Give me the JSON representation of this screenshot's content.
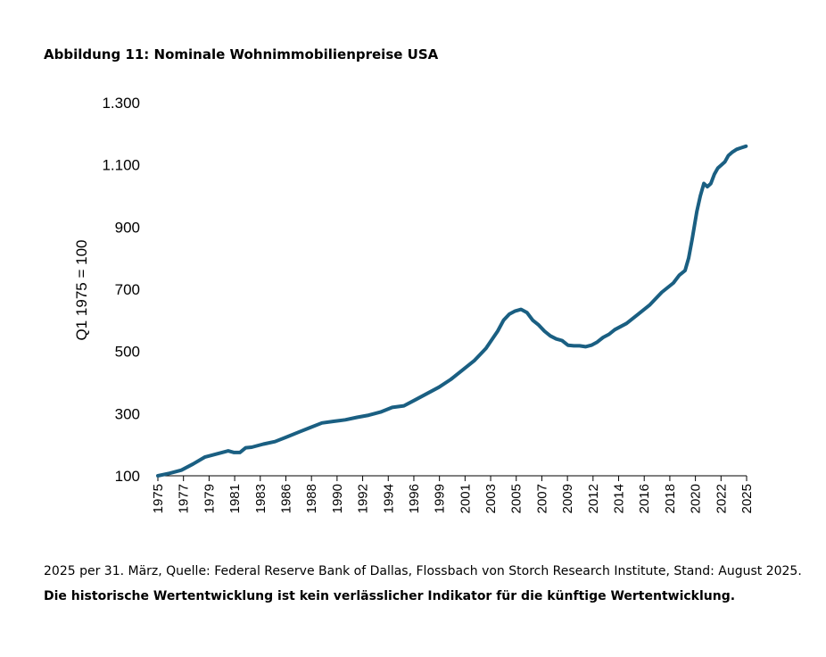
{
  "title": "Abbildung 11: Nominale Wohnimmobilienpreise USA",
  "footnote": {
    "text": "2025 per 31. März, Quelle: Federal Reserve Bank of Dallas, Flossbach von Storch Research Institute, Stand: August 2025. ",
    "bold": "Die historische Wertentwicklung ist kein verlässlicher Indikator für die künftige Wertentwicklung."
  },
  "chart_data": {
    "type": "line",
    "title": "Abbildung 11: Nominale Wohnimmobilienpreise USA",
    "ylabel": "Q1 1975 = 100",
    "xlabel": "",
    "ylim": [
      100,
      1300
    ],
    "y_ticks": [
      "100",
      "300",
      "500",
      "700",
      "900",
      "1.100",
      "1.300"
    ],
    "x_ticks": [
      "1975",
      "1977",
      "1979",
      "1981",
      "1983",
      "1986",
      "1988",
      "1990",
      "1992",
      "1994",
      "1996",
      "1999",
      "2001",
      "2003",
      "2005",
      "2007",
      "2009",
      "2012",
      "2014",
      "2016",
      "2018",
      "2020",
      "2022",
      "2025"
    ],
    "line_color": "#1a5f82",
    "grid": false,
    "series": [
      {
        "name": "",
        "x": [
          1975.0,
          1976.0,
          1977.0,
          1978.0,
          1979.0,
          1980.0,
          1981.0,
          1981.5,
          1982.0,
          1982.5,
          1983.0,
          1984.0,
          1985.0,
          1986.0,
          1987.0,
          1988.0,
          1989.0,
          1990.0,
          1991.0,
          1992.0,
          1993.0,
          1994.0,
          1995.0,
          1996.0,
          1997.0,
          1998.0,
          1999.0,
          2000.0,
          2001.0,
          2002.0,
          2003.0,
          2004.0,
          2004.5,
          2005.0,
          2005.5,
          2006.0,
          2006.5,
          2007.0,
          2007.5,
          2008.0,
          2008.5,
          2009.0,
          2009.5,
          2010.0,
          2010.5,
          2011.0,
          2011.5,
          2012.0,
          2012.5,
          2013.0,
          2013.5,
          2014.0,
          2014.5,
          2015.0,
          2016.0,
          2017.0,
          2018.0,
          2019.0,
          2019.5,
          2020.0,
          2020.3,
          2020.6,
          2021.0,
          2021.3,
          2021.6,
          2021.9,
          2022.2,
          2022.5,
          2022.8,
          2023.1,
          2023.4,
          2023.7,
          2024.0,
          2024.4,
          2024.8,
          2025.2
        ],
        "values": [
          100,
          108,
          118,
          138,
          160,
          170,
          180,
          175,
          175,
          190,
          192,
          202,
          210,
          225,
          240,
          255,
          270,
          275,
          280,
          288,
          295,
          305,
          320,
          325,
          345,
          365,
          385,
          410,
          440,
          470,
          510,
          565,
          600,
          620,
          630,
          635,
          625,
          600,
          585,
          565,
          550,
          540,
          535,
          520,
          518,
          518,
          515,
          520,
          530,
          545,
          555,
          570,
          580,
          590,
          620,
          650,
          690,
          720,
          745,
          760,
          800,
          860,
          950,
          1000,
          1040,
          1030,
          1040,
          1070,
          1090,
          1100,
          1110,
          1130,
          1140,
          1150,
          1155,
          1160
        ]
      }
    ]
  }
}
